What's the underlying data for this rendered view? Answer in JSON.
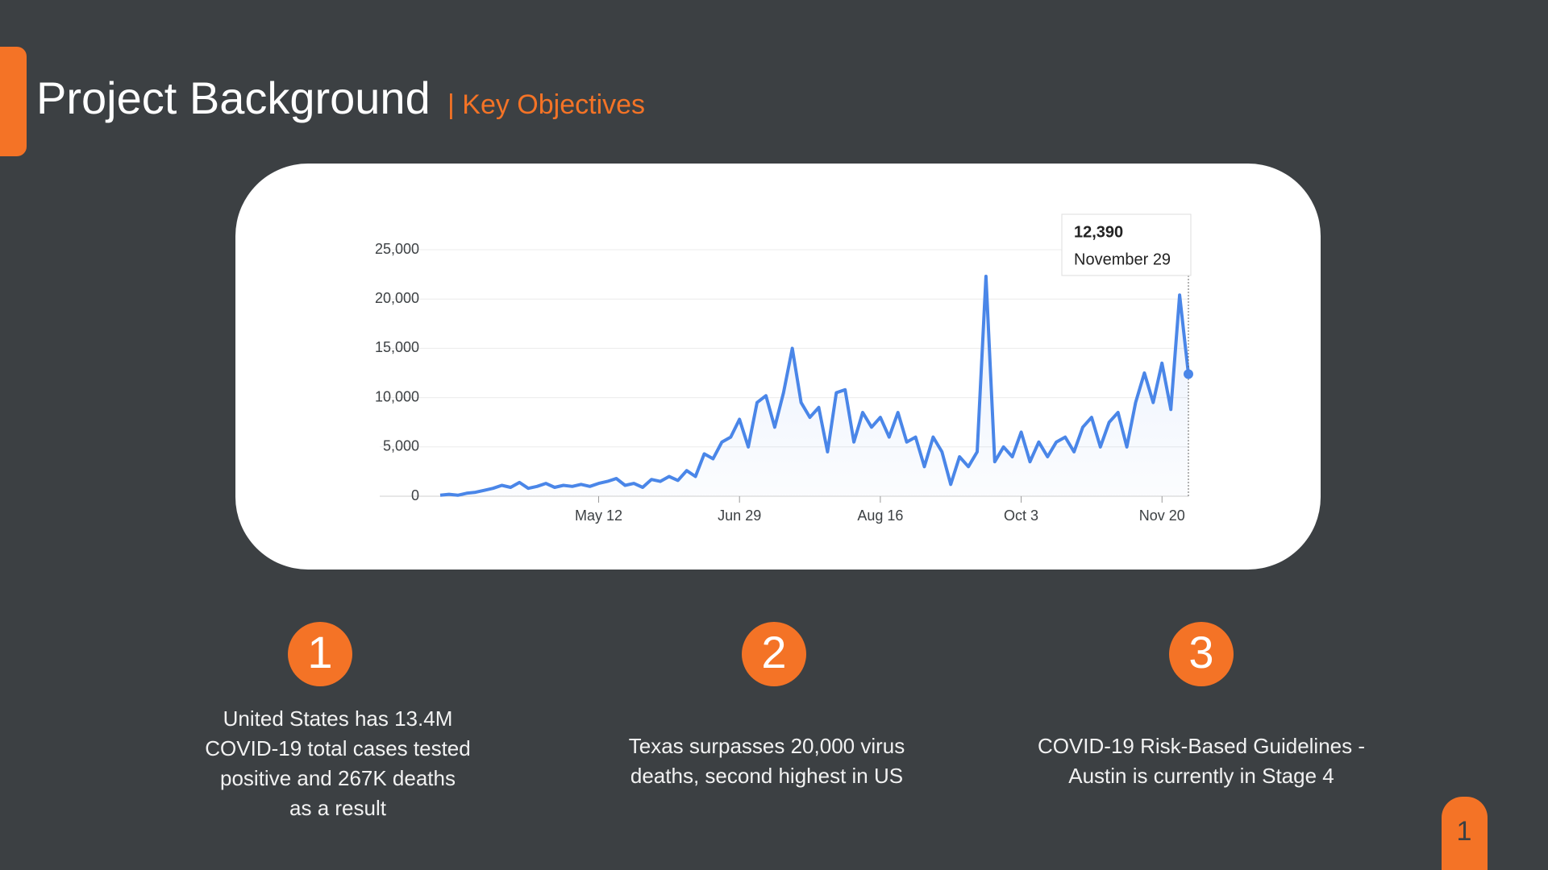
{
  "header": {
    "title": "Project Background",
    "subtitle": "| Key Objectives"
  },
  "chart_data": {
    "type": "line",
    "color": "#4a86e8",
    "categories": [
      null,
      null,
      null,
      null,
      null,
      null,
      null,
      null,
      null,
      null,
      null,
      null,
      null,
      null,
      null,
      null,
      null,
      null,
      "May 12",
      null,
      null,
      null,
      null,
      null,
      null,
      null,
      null,
      null,
      null,
      null,
      null,
      null,
      null,
      null,
      "Jun 29",
      null,
      null,
      null,
      null,
      null,
      null,
      null,
      null,
      null,
      null,
      null,
      null,
      null,
      null,
      null,
      "Aug 16",
      null,
      null,
      null,
      null,
      null,
      null,
      null,
      null,
      null,
      null,
      null,
      null,
      null,
      null,
      null,
      "Oct 3",
      null,
      null,
      null,
      null,
      null,
      null,
      null,
      null,
      null,
      null,
      null,
      null,
      null,
      null,
      null,
      "Nov 20",
      null,
      null,
      null
    ],
    "values": [
      100,
      200,
      100,
      300,
      400,
      600,
      800,
      1100,
      900,
      1400,
      800,
      1000,
      1300,
      900,
      1100,
      1000,
      1200,
      1000,
      1300,
      1500,
      1800,
      1100,
      1300,
      900,
      1700,
      1500,
      2000,
      1600,
      2600,
      2000,
      4300,
      3800,
      5500,
      6000,
      7800,
      5000,
      9500,
      10200,
      7000,
      10500,
      15000,
      9500,
      8000,
      9000,
      4500,
      10500,
      10800,
      5500,
      8500,
      7000,
      8000,
      6000,
      8500,
      5500,
      6000,
      3000,
      6000,
      4500,
      1200,
      4000,
      3000,
      4500,
      22300,
      3500,
      5000,
      4000,
      6500,
      3500,
      5500,
      4000,
      5500,
      6000,
      4500,
      7000,
      8000,
      5000,
      7500,
      8500,
      5000,
      9500,
      12500,
      9500,
      13500,
      8800,
      20400,
      12390
    ],
    "ylim": [
      0,
      25000
    ],
    "yticks": [
      0,
      {
        "value": 5000,
        "label": "5,000"
      },
      {
        "value": 10000,
        "label": "10,000"
      },
      {
        "value": 15000,
        "label": "15,000"
      },
      {
        "value": 20000,
        "label": "20,000"
      },
      {
        "value": 25000,
        "label": "25,000"
      }
    ],
    "grid": true,
    "annotation": {
      "label": "12,390",
      "date": "November 29"
    }
  },
  "objectives": [
    {
      "number": "1",
      "lines": [
        "United States has 13.4M",
        "COVID-19 total cases tested",
        "positive and 267K deaths",
        "as a result"
      ]
    },
    {
      "number": "2",
      "lines": [
        "Texas surpasses 20,000 virus",
        "deaths, second highest in US"
      ]
    },
    {
      "number": "3",
      "lines": [
        "COVID-19 Risk-Based Guidelines -",
        "Austin is currently in Stage 4"
      ]
    }
  ],
  "page_number": "1"
}
